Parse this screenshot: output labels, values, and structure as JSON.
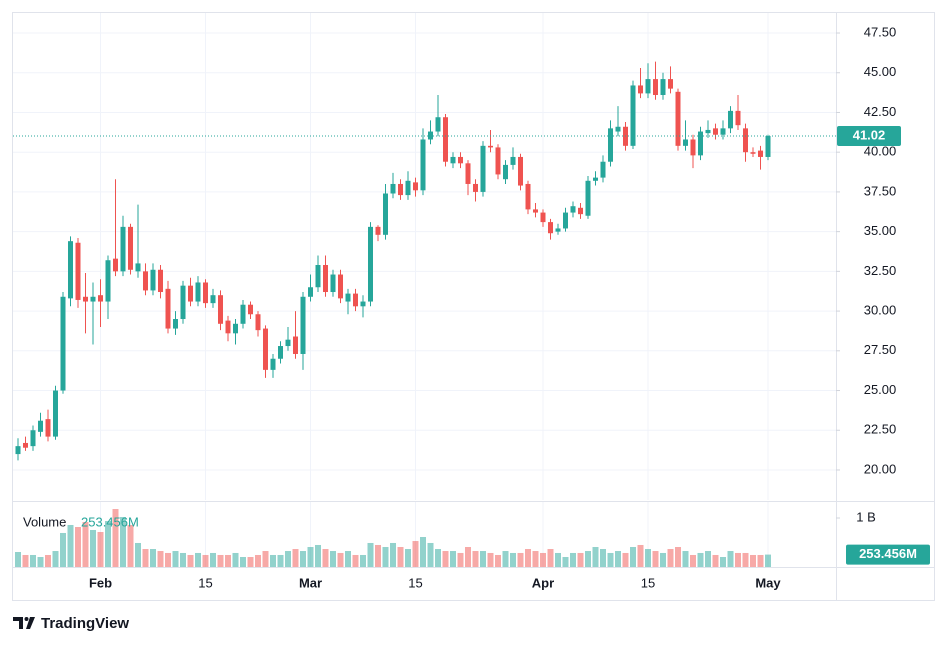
{
  "chart_data": {
    "type": "candlestick",
    "up_color": "#26a69a",
    "down_color": "#ef5350",
    "grid": true,
    "categories": [
      null,
      null,
      null,
      null,
      null,
      null,
      null,
      null,
      null,
      null,
      null,
      "Feb",
      null,
      null,
      null,
      null,
      null,
      null,
      null,
      null,
      null,
      null,
      null,
      null,
      null,
      "15",
      null,
      null,
      null,
      null,
      null,
      null,
      null,
      null,
      null,
      null,
      null,
      null,
      null,
      "Mar",
      null,
      null,
      null,
      null,
      null,
      null,
      null,
      null,
      null,
      null,
      null,
      null,
      null,
      "15",
      null,
      null,
      null,
      null,
      null,
      null,
      null,
      null,
      null,
      null,
      null,
      null,
      null,
      null,
      null,
      null,
      "Apr",
      null,
      null,
      null,
      null,
      null,
      null,
      null,
      null,
      null,
      null,
      null,
      null,
      null,
      "15",
      null,
      null,
      null,
      null,
      null,
      null,
      null,
      null,
      null,
      null,
      null,
      null,
      null,
      null,
      null,
      "May"
    ],
    "open": [
      21.0,
      21.7,
      21.5,
      22.4,
      23.2,
      22.1,
      25.0,
      30.8,
      34.3,
      30.9,
      30.6,
      31.0,
      30.6,
      33.3,
      32.5,
      35.3,
      32.5,
      32.5,
      31.3,
      32.6,
      31.4,
      28.9,
      29.5,
      31.6,
      30.6,
      31.8,
      30.5,
      31.0,
      29.4,
      28.6,
      29.2,
      30.4,
      29.8,
      28.9,
      26.3,
      27.0,
      27.8,
      28.4,
      27.3,
      30.9,
      31.5,
      32.9,
      31.2,
      32.3,
      30.6,
      31.1,
      30.3,
      30.6,
      35.3,
      34.8,
      37.4,
      38.0,
      37.3,
      38.1,
      37.6,
      40.8,
      41.3,
      42.2,
      39.3,
      39.7,
      39.3,
      38.0,
      37.5,
      40.4,
      40.3,
      38.3,
      39.2,
      39.7,
      38.0,
      36.4,
      36.2,
      35.6,
      35.0,
      35.2,
      36.2,
      36.5,
      36.0,
      38.2,
      38.4,
      39.4,
      41.3,
      41.6,
      40.4,
      44.2,
      43.7,
      44.6,
      43.6,
      44.6,
      43.8,
      40.4,
      40.8,
      39.8,
      41.2,
      41.5,
      41.1,
      41.5,
      42.6,
      41.5,
      40.0,
      40.1,
      39.7
    ],
    "high": [
      22.0,
      22.1,
      22.8,
      23.6,
      23.8,
      25.3,
      31.2,
      34.7,
      34.6,
      32.4,
      31.8,
      32.0,
      33.5,
      38.3,
      36.0,
      35.5,
      36.7,
      33.0,
      33.0,
      32.9,
      31.9,
      30.0,
      31.9,
      32.1,
      32.2,
      32.0,
      31.4,
      31.3,
      29.7,
      29.5,
      30.7,
      30.6,
      30.0,
      29.1,
      27.3,
      28.1,
      29.0,
      30.0,
      31.2,
      32.3,
      33.5,
      33.5,
      32.6,
      32.6,
      31.4,
      31.4,
      31.0,
      35.6,
      35.4,
      38.0,
      38.7,
      38.3,
      38.8,
      38.4,
      41.5,
      42.0,
      43.6,
      42.4,
      40.0,
      40.0,
      39.5,
      38.3,
      40.7,
      41.4,
      40.5,
      39.5,
      40.3,
      39.9,
      38.2,
      36.8,
      36.4,
      35.8,
      35.5,
      36.5,
      36.9,
      36.8,
      38.5,
      38.8,
      39.8,
      42.0,
      42.9,
      41.9,
      44.5,
      45.3,
      45.6,
      45.7,
      45.0,
      45.4,
      44.0,
      42.0,
      41.1,
      41.6,
      42.0,
      41.8,
      42.0,
      42.9,
      43.6,
      41.8,
      40.3,
      40.4,
      41.1
    ],
    "low": [
      20.6,
      21.2,
      21.2,
      22.1,
      21.8,
      21.9,
      24.8,
      30.3,
      30.2,
      28.6,
      27.9,
      29.0,
      29.5,
      32.2,
      32.2,
      32.3,
      32.1,
      31.0,
      31.0,
      30.8,
      28.6,
      28.5,
      29.2,
      30.3,
      30.3,
      30.2,
      30.2,
      28.8,
      28.1,
      27.9,
      28.9,
      29.5,
      28.4,
      25.8,
      25.8,
      26.7,
      27.5,
      27.0,
      26.3,
      30.6,
      31.2,
      30.9,
      30.9,
      30.5,
      29.8,
      30.0,
      29.6,
      30.3,
      34.4,
      34.5,
      37.1,
      37.0,
      37.0,
      37.2,
      37.3,
      40.5,
      41.0,
      39.1,
      39.0,
      39.0,
      37.3,
      36.9,
      37.2,
      40.0,
      38.3,
      38.0,
      38.9,
      37.6,
      36.1,
      35.9,
      35.3,
      34.5,
      34.8,
      35.0,
      35.9,
      35.8,
      35.8,
      37.9,
      38.1,
      39.1,
      41.0,
      40.1,
      40.2,
      43.4,
      43.4,
      43.3,
      43.3,
      43.7,
      40.1,
      40.1,
      39.0,
      39.5,
      40.9,
      40.8,
      40.8,
      41.2,
      41.4,
      39.4,
      39.7,
      38.9,
      39.5
    ],
    "close": [
      21.5,
      21.4,
      22.5,
      23.1,
      22.1,
      25.0,
      30.9,
      34.4,
      30.7,
      30.6,
      30.9,
      30.6,
      33.2,
      32.5,
      35.3,
      32.6,
      33.0,
      31.3,
      32.6,
      31.2,
      28.9,
      29.5,
      31.6,
      30.6,
      31.8,
      30.5,
      31.0,
      29.2,
      28.6,
      29.2,
      30.4,
      29.8,
      28.8,
      26.3,
      27.0,
      27.8,
      28.2,
      27.3,
      30.9,
      31.5,
      32.9,
      31.2,
      32.3,
      30.8,
      31.1,
      30.3,
      30.6,
      35.3,
      34.8,
      37.4,
      38.0,
      37.3,
      38.2,
      37.6,
      40.8,
      41.3,
      42.2,
      39.4,
      39.7,
      39.3,
      38.0,
      37.5,
      40.4,
      40.3,
      38.6,
      39.2,
      39.7,
      37.9,
      36.4,
      36.2,
      35.6,
      34.9,
      35.2,
      36.2,
      36.6,
      36.1,
      38.2,
      38.4,
      39.4,
      41.5,
      41.6,
      40.4,
      44.2,
      43.7,
      44.6,
      43.6,
      44.6,
      44.0,
      40.4,
      40.8,
      39.8,
      41.3,
      41.4,
      41.1,
      41.5,
      42.6,
      41.7,
      40.0,
      39.9,
      39.7,
      41.02
    ],
    "ylim": [
      18.11,
      48.76
    ],
    "yticks": [
      {
        "value": 20,
        "label": "20.00"
      },
      {
        "value": 22.5,
        "label": "22.50"
      },
      {
        "value": 25,
        "label": "25.00"
      },
      {
        "value": 27.5,
        "label": "27.50"
      },
      {
        "value": 30,
        "label": "30.00"
      },
      {
        "value": 32.5,
        "label": "32.50"
      },
      {
        "value": 35,
        "label": "35.00"
      },
      {
        "value": 37.5,
        "label": "37.50"
      },
      {
        "value": 40,
        "label": "40.00"
      },
      {
        "value": 42.5,
        "label": "42.50"
      },
      {
        "value": 45,
        "label": "45.00"
      },
      {
        "value": 47.5,
        "label": "47.50"
      }
    ],
    "volume": {
      "name": "Volume",
      "current_label": "253.456M",
      "values": [
        306000000,
        245000000,
        245000000,
        204000000,
        245000000,
        326000000,
        694000000,
        857000000,
        816000000,
        918000000,
        755000000,
        714000000,
        938000000,
        1183000000,
        1020000000,
        857000000,
        490000000,
        367000000,
        367000000,
        326000000,
        286000000,
        326000000,
        286000000,
        245000000,
        286000000,
        245000000,
        286000000,
        245000000,
        245000000,
        286000000,
        204000000,
        204000000,
        245000000,
        326000000,
        245000000,
        245000000,
        326000000,
        367000000,
        326000000,
        408000000,
        449000000,
        367000000,
        326000000,
        286000000,
        326000000,
        245000000,
        245000000,
        490000000,
        449000000,
        408000000,
        490000000,
        408000000,
        367000000,
        530000000,
        612000000,
        490000000,
        367000000,
        326000000,
        326000000,
        286000000,
        408000000,
        326000000,
        326000000,
        286000000,
        245000000,
        326000000,
        286000000,
        286000000,
        367000000,
        326000000,
        286000000,
        367000000,
        286000000,
        204000000,
        286000000,
        286000000,
        326000000,
        408000000,
        367000000,
        286000000,
        326000000,
        286000000,
        408000000,
        449000000,
        367000000,
        326000000,
        286000000,
        367000000,
        408000000,
        326000000,
        245000000,
        286000000,
        326000000,
        245000000,
        204000000,
        326000000,
        286000000,
        286000000,
        245000000,
        245000000,
        253456000
      ],
      "ylim": [
        0,
        1265000000
      ],
      "yticks": [
        {
          "value": 1000000000,
          "label": "1 B"
        }
      ]
    },
    "watermark": "TradingView"
  }
}
